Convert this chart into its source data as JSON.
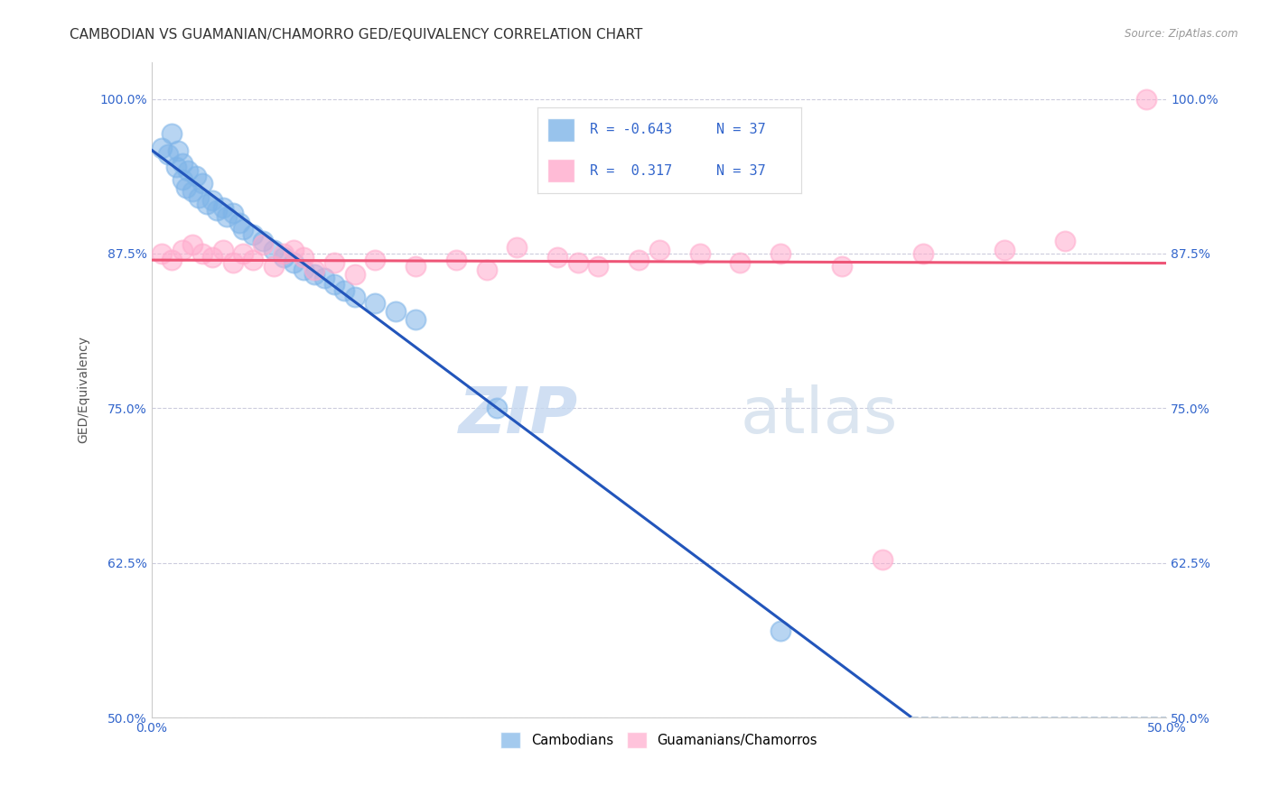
{
  "title": "CAMBODIAN VS GUAMANIAN/CHAMORRO GED/EQUIVALENCY CORRELATION CHART",
  "source": "Source: ZipAtlas.com",
  "ylabel": "GED/Equivalency",
  "xlim": [
    0.0,
    0.5
  ],
  "ylim": [
    0.5,
    1.03
  ],
  "xticks": [
    0.0,
    0.1,
    0.2,
    0.3,
    0.4,
    0.5
  ],
  "xtick_labels": [
    "0.0%",
    "",
    "",
    "",
    "",
    "50.0%"
  ],
  "ytick_labels": [
    "100.0%",
    "87.5%",
    "75.0%",
    "62.5%",
    "50.0%"
  ],
  "yticks": [
    1.0,
    0.875,
    0.75,
    0.625,
    0.5
  ],
  "r_cambodian": -0.643,
  "n_cambodian": 37,
  "r_guamanian": 0.317,
  "n_guamanian": 37,
  "color_cambodian": "#7EB4E8",
  "color_guamanian": "#FFAACC",
  "color_cambodian_line": "#2255BB",
  "color_guamanian_line": "#EE5577",
  "color_dashed": "#BBCCDD",
  "background_color": "#FFFFFF",
  "grid_color": "#CCCCDD",
  "watermark_zip": "ZIP",
  "watermark_atlas": "atlas",
  "cambodian_x": [
    0.005,
    0.008,
    0.01,
    0.012,
    0.013,
    0.015,
    0.015,
    0.017,
    0.018,
    0.02,
    0.022,
    0.023,
    0.025,
    0.027,
    0.03,
    0.032,
    0.035,
    0.037,
    0.04,
    0.043,
    0.045,
    0.05,
    0.055,
    0.06,
    0.065,
    0.07,
    0.075,
    0.08,
    0.085,
    0.09,
    0.095,
    0.1,
    0.11,
    0.12,
    0.13,
    0.17,
    0.31
  ],
  "cambodian_y": [
    0.96,
    0.955,
    0.972,
    0.945,
    0.958,
    0.935,
    0.948,
    0.928,
    0.942,
    0.925,
    0.938,
    0.92,
    0.932,
    0.915,
    0.918,
    0.91,
    0.912,
    0.905,
    0.908,
    0.9,
    0.895,
    0.89,
    0.885,
    0.878,
    0.872,
    0.868,
    0.862,
    0.858,
    0.855,
    0.85,
    0.845,
    0.84,
    0.835,
    0.828,
    0.822,
    0.75,
    0.57
  ],
  "guamanian_x": [
    0.005,
    0.01,
    0.015,
    0.02,
    0.025,
    0.03,
    0.035,
    0.04,
    0.045,
    0.05,
    0.055,
    0.06,
    0.065,
    0.07,
    0.075,
    0.08,
    0.09,
    0.1,
    0.11,
    0.13,
    0.15,
    0.165,
    0.18,
    0.2,
    0.21,
    0.22,
    0.24,
    0.25,
    0.27,
    0.29,
    0.31,
    0.34,
    0.36,
    0.38,
    0.42,
    0.45,
    0.49
  ],
  "guamanian_y": [
    0.875,
    0.87,
    0.878,
    0.882,
    0.875,
    0.872,
    0.878,
    0.868,
    0.875,
    0.87,
    0.882,
    0.865,
    0.875,
    0.878,
    0.872,
    0.862,
    0.868,
    0.858,
    0.87,
    0.865,
    0.87,
    0.862,
    0.88,
    0.872,
    0.868,
    0.865,
    0.87,
    0.878,
    0.875,
    0.868,
    0.875,
    0.865,
    0.628,
    0.875,
    0.878,
    0.885,
    1.0
  ],
  "title_fontsize": 11,
  "axis_label_fontsize": 10,
  "tick_fontsize": 10,
  "watermark_fontsize_zip": 52,
  "watermark_fontsize_atlas": 52
}
